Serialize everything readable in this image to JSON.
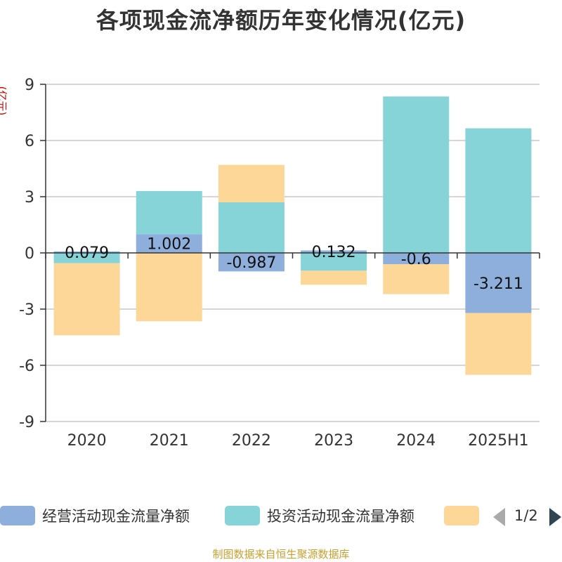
{
  "title": "各项现金流净额历年变化情况(亿元)",
  "unit_label": "(亿元)",
  "source": "制图数据来自恒生聚源数据库",
  "legend": {
    "pager_text": "1/2"
  },
  "colors": {
    "operating": "#8eaedb",
    "investing": "#86d4d8",
    "financing": "#fdd797",
    "grid": "#c8c8c8",
    "axis": "#333333"
  },
  "chart_data": {
    "type": "bar",
    "stacked": true,
    "title": "各项现金流净额历年变化情况(亿元)",
    "ylabel": "(亿元)",
    "categories": [
      "2020",
      "2021",
      "2022",
      "2023",
      "2024",
      "2025H1"
    ],
    "ylim": [
      -9,
      9
    ],
    "yticks": [
      -9,
      -6,
      -3,
      0,
      3,
      6,
      9
    ],
    "grid": true,
    "legend_position": "bottom",
    "series": [
      {
        "name": "经营活动现金流量净额",
        "values": [
          0.079,
          1.002,
          -0.987,
          0.132,
          -0.6,
          -3.211
        ],
        "labels": [
          "0.079",
          "1.002",
          "-0.987",
          "0.132",
          "-0.6",
          "-3.211"
        ]
      },
      {
        "name": "投资活动现金流量净额",
        "values": [
          -0.55,
          2.3,
          2.7,
          -0.95,
          8.35,
          6.65
        ]
      },
      {
        "name": "",
        "values": [
          -3.85,
          -3.65,
          2.0,
          -0.75,
          -1.6,
          -3.3
        ]
      }
    ]
  }
}
